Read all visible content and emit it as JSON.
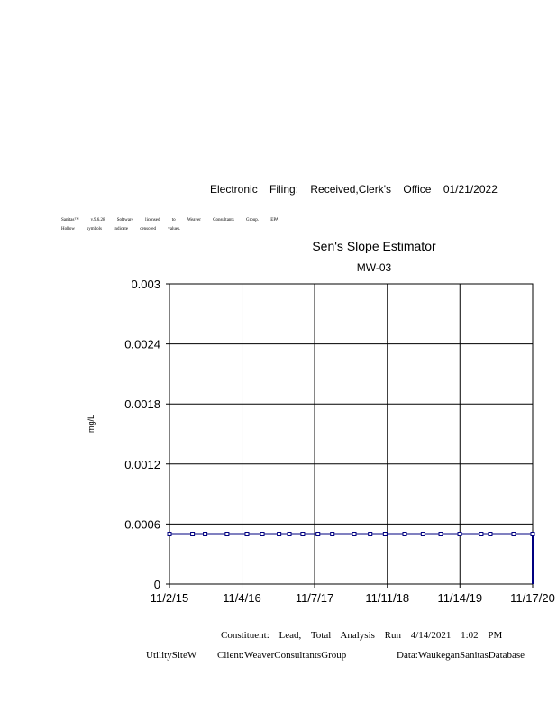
{
  "header": {
    "filing": "Electronic Filing: Received,Clerk's Office 01/21/2022",
    "license_line": "Sanitas™ v.9.6.28 Software licensed to Weaver Consultants Group. EPA",
    "legend_note": "Hollow symbols indicate censored values."
  },
  "footer": {
    "constituent": "Constituent: Lead, Total Analysis Run 4/14/2021 1:02 PM",
    "site": "UtilitySiteW",
    "client": "Client:WeaverConsultantsGroup",
    "data": "Data:WaukeganSanitasDatabase"
  },
  "colors": {
    "series": "#000080",
    "grid": "#000000"
  },
  "chart_data": {
    "type": "line",
    "title": "Sen's Slope Estimator",
    "subtitle": "MW-03",
    "xlabel": "",
    "ylabel": "mg/L",
    "xlim": [
      "2015-11-02",
      "2020-11-17"
    ],
    "ylim": [
      0,
      0.003
    ],
    "x_ticks": [
      "11/2/15",
      "11/4/16",
      "11/7/17",
      "11/11/18",
      "11/14/19",
      "11/17/20"
    ],
    "x_tick_dates": [
      "2015-11-02",
      "2016-11-04",
      "2017-11-07",
      "2018-11-11",
      "2019-11-14",
      "2020-11-17"
    ],
    "y_ticks": [
      "0",
      "0.0006",
      "0.0012",
      "0.0018",
      "0.0024",
      "0.003"
    ],
    "y_tick_values": [
      0,
      0.0006,
      0.0012,
      0.0018,
      0.0024,
      0.003
    ],
    "grid": true,
    "markers": "hollow-square",
    "series": [
      {
        "x": [
          "2015-11-02",
          "2016-02-27",
          "2016-05-01",
          "2016-08-20",
          "2016-11-29",
          "2017-02-15",
          "2017-05-11",
          "2017-07-02",
          "2017-09-08",
          "2017-11-24",
          "2018-02-05",
          "2018-05-27",
          "2018-08-16",
          "2018-10-31",
          "2019-02-07",
          "2019-05-11",
          "2019-08-09",
          "2019-11-13",
          "2020-03-01",
          "2020-04-16",
          "2020-08-13",
          "2020-11-17"
        ],
        "y": [
          0.0005,
          0.0005,
          0.0005,
          0.0005,
          0.0005,
          0.0005,
          0.0005,
          0.0005,
          0.0005,
          0.0005,
          0.0005,
          0.0005,
          0.0005,
          0.0005,
          0.0005,
          0.0005,
          0.0005,
          0.0005,
          0.0005,
          0.0005,
          0.0005,
          0.0005
        ]
      }
    ],
    "trend_line": {
      "x": [
        "2015-11-02",
        "2020-11-17"
      ],
      "y": [
        0.0005,
        0.0005
      ]
    }
  }
}
